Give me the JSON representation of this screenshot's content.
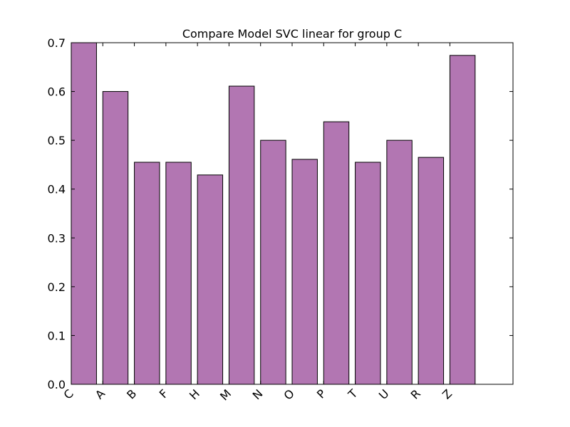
{
  "chart_data": {
    "type": "bar",
    "title": "Compare Model SVC linear for group C",
    "xlabel": "",
    "ylabel": "",
    "categories": [
      "C",
      "A",
      "B",
      "F",
      "H",
      "M",
      "N",
      "O",
      "P",
      "T",
      "U",
      "R",
      "Z"
    ],
    "values": [
      0.7,
      0.6,
      0.455,
      0.455,
      0.429,
      0.611,
      0.5,
      0.461,
      0.538,
      0.455,
      0.5,
      0.465,
      0.674
    ],
    "ylim": [
      0,
      0.7
    ],
    "xlim": [
      0,
      14
    ],
    "yticks": [
      0.0,
      0.1,
      0.2,
      0.3,
      0.4,
      0.5,
      0.6,
      0.7
    ],
    "ytick_labels": [
      "0.0",
      "0.1",
      "0.2",
      "0.3",
      "0.4",
      "0.5",
      "0.6",
      "0.7"
    ],
    "xtick_rotation": 45,
    "bar_color": "#b276b2",
    "edge_color": "#000000",
    "grid": false,
    "legend": "none"
  }
}
